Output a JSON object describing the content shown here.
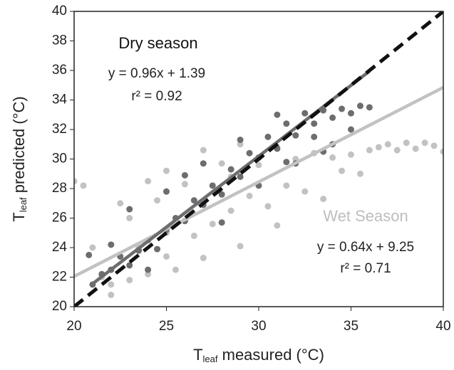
{
  "chart_data": {
    "type": "scatter",
    "x_label": {
      "main": "T",
      "sub": "leaf",
      "rest": " measured (°C)"
    },
    "y_label": {
      "main": "T",
      "sub": "leaf",
      "rest": " predicted (°C)"
    },
    "xlim": [
      20,
      40
    ],
    "xticks": [
      20,
      25,
      30,
      35,
      40
    ],
    "ylim": [
      20,
      40
    ],
    "yticks": [
      20,
      22,
      24,
      26,
      28,
      30,
      32,
      34,
      36,
      38,
      40
    ],
    "series": [
      {
        "name": "Wet Season",
        "color": "#c2c2c4",
        "x": [
          20,
          20.5,
          21,
          21.5,
          22,
          22.5,
          23,
          23,
          23.5,
          24,
          24,
          24.5,
          25,
          25,
          25.5,
          26,
          26.5,
          27,
          27.5,
          28,
          28.5,
          29,
          29.5,
          30,
          30.5,
          31,
          31.5,
          32,
          32.5,
          33,
          33.5,
          34,
          34.5,
          35,
          35.5,
          36,
          36.5,
          37,
          37.5,
          38,
          38.5,
          39,
          39.5,
          40,
          22,
          27,
          29,
          25,
          28.5,
          31
        ],
        "values": [
          28.5,
          28.2,
          24,
          22,
          21.5,
          27,
          21.8,
          26,
          24,
          22.2,
          28.5,
          27.2,
          25,
          29.2,
          22.5,
          28.3,
          24.8,
          30.6,
          25.6,
          29.7,
          26.5,
          31,
          27.5,
          29.6,
          26.8,
          30.8,
          28.2,
          30,
          27.8,
          30.4,
          27.3,
          30.1,
          29.2,
          30.3,
          29,
          30.6,
          30.8,
          31,
          30.6,
          31.1,
          30.7,
          31.1,
          30.9,
          30.5,
          20.8,
          23.3,
          24.1,
          23.4,
          28.8,
          25.5
        ]
      },
      {
        "name": "Dry season",
        "color": "#6d6d70",
        "x": [
          21,
          21.5,
          22,
          22.5,
          23,
          23.5,
          24,
          24.5,
          25,
          25.5,
          26,
          26.5,
          27,
          27.5,
          28,
          28.5,
          29,
          29.5,
          30,
          30.5,
          31,
          31.5,
          32,
          32.5,
          33,
          33.5,
          34,
          34.5,
          35,
          35.5,
          36,
          20.8,
          23,
          26,
          28,
          30,
          32,
          29,
          24,
          27,
          31,
          33,
          34,
          25,
          22,
          35,
          33.5,
          31.5
        ],
        "values": [
          21.5,
          22.2,
          22.5,
          23.4,
          22.8,
          23.8,
          24.5,
          23.9,
          25.2,
          26,
          25.8,
          27.2,
          26.9,
          28.2,
          27.6,
          29.3,
          28.8,
          30.4,
          30.1,
          31.5,
          30.7,
          32.4,
          31.6,
          33.1,
          32.4,
          33.3,
          32.8,
          33.4,
          33.1,
          33.6,
          33.5,
          23.5,
          26.6,
          28.9,
          25.7,
          28.2,
          29.7,
          31.3,
          22.5,
          29.7,
          33,
          31.5,
          31,
          27.8,
          24.2,
          32,
          30.5,
          29.8
        ]
      }
    ],
    "fit_lines": [
      {
        "color": "#c2c2c4",
        "x": [
          20,
          40
        ],
        "values": [
          22.05,
          34.85
        ],
        "equation": "y = 0.64x + 9.25",
        "r2": "r² = 0.71"
      },
      {
        "color": "#6d6d70",
        "x": [
          21,
          36
        ],
        "values": [
          21.55,
          35.95
        ],
        "equation": "y = 0.96x + 1.39",
        "r2": "r² = 0.92"
      },
      {
        "color": "#111111",
        "dashed": true,
        "x": [
          20,
          40
        ],
        "values": [
          20,
          40
        ]
      }
    ]
  }
}
